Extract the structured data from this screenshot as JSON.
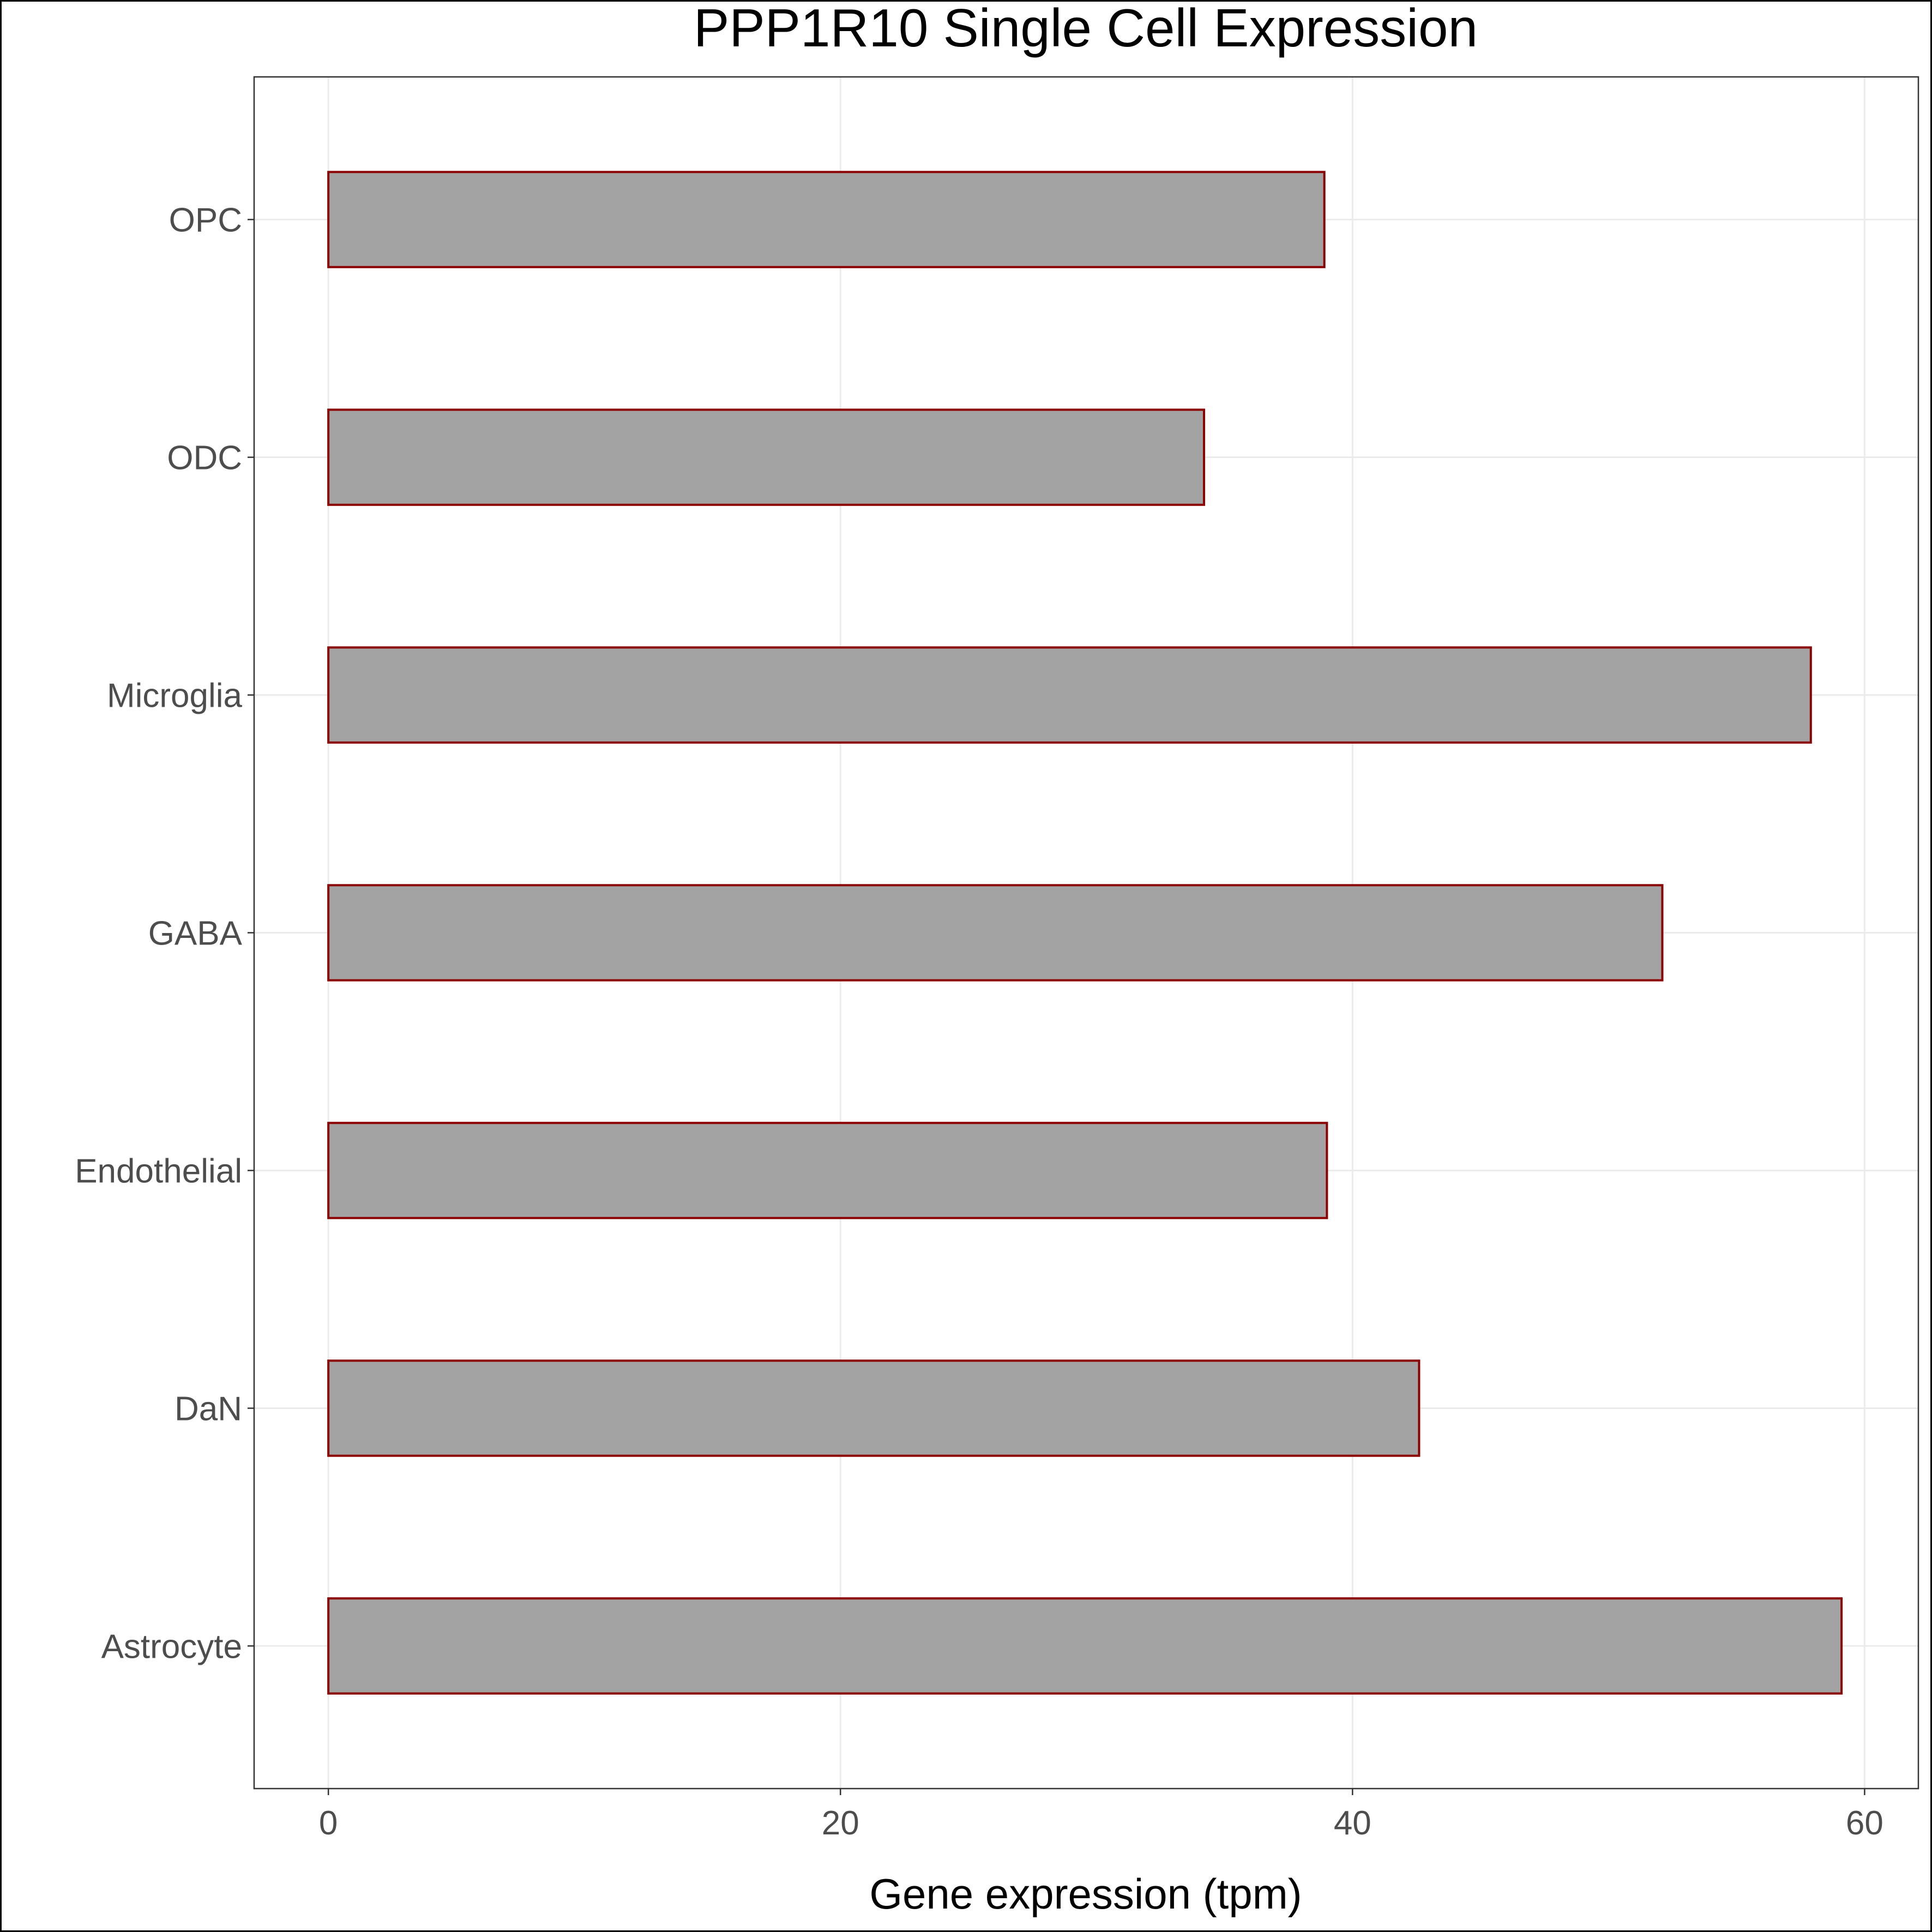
{
  "chart_data": {
    "type": "bar",
    "orientation": "horizontal",
    "title": "PPP1R10 Single Cell Expression",
    "xlabel": "Gene expression (tpm)",
    "ylabel": "",
    "categories": [
      "OPC",
      "ODC",
      "Microglia",
      "GABA",
      "Endothelial",
      "DaN",
      "Astrocyte"
    ],
    "values": [
      38.9,
      34.2,
      57.9,
      52.1,
      39.0,
      42.6,
      59.1
    ],
    "xlim": [
      -2.9,
      62.1
    ],
    "xticks": [
      0,
      20,
      40,
      60
    ],
    "xtick_labels": [
      "0",
      "20",
      "40",
      "60"
    ],
    "grid": true,
    "legend": "none",
    "colors": {
      "bar_fill": "#a3a3a3",
      "bar_stroke": "#8b0000",
      "grid": "#ebebeb",
      "axis_text": "#4d4d4d",
      "title": "#000000"
    }
  }
}
